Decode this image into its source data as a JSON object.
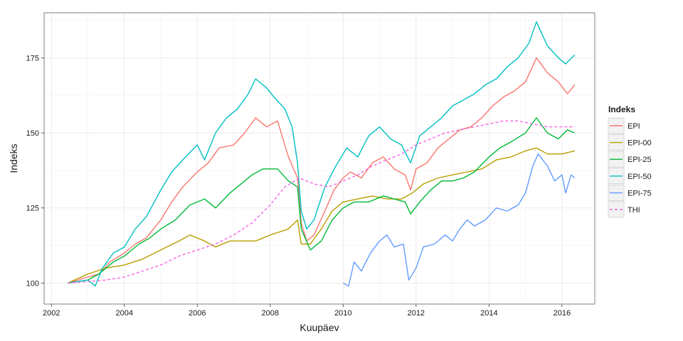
{
  "chart_data": {
    "type": "line",
    "xlabel": "Kuupäev",
    "ylabel": "Indeks",
    "xlim": [
      2001.8,
      2016.9
    ],
    "ylim": [
      93,
      190
    ],
    "x_ticks": [
      2002,
      2004,
      2006,
      2008,
      2010,
      2012,
      2014,
      2016
    ],
    "y_ticks": [
      100,
      125,
      150,
      175
    ],
    "grid": true,
    "legend": {
      "title": "Indeks",
      "position": "right"
    },
    "series": [
      {
        "name": "EPI",
        "color": "#f8766d",
        "dash": false,
        "points": [
          [
            2002.45,
            100
          ],
          [
            2003.0,
            102
          ],
          [
            2003.3,
            103
          ],
          [
            2003.6,
            107
          ],
          [
            2004.0,
            110
          ],
          [
            2004.3,
            113
          ],
          [
            2004.6,
            115
          ],
          [
            2005.0,
            121
          ],
          [
            2005.3,
            127
          ],
          [
            2005.6,
            132
          ],
          [
            2006.0,
            137
          ],
          [
            2006.3,
            140
          ],
          [
            2006.6,
            145
          ],
          [
            2007.0,
            146
          ],
          [
            2007.3,
            150
          ],
          [
            2007.6,
            155
          ],
          [
            2007.9,
            152
          ],
          [
            2008.2,
            154
          ],
          [
            2008.5,
            142
          ],
          [
            2008.75,
            135
          ],
          [
            2008.85,
            120
          ],
          [
            2009.0,
            114
          ],
          [
            2009.2,
            116
          ],
          [
            2009.5,
            124
          ],
          [
            2009.75,
            131
          ],
          [
            2010.0,
            135
          ],
          [
            2010.2,
            137
          ],
          [
            2010.5,
            135
          ],
          [
            2010.8,
            140
          ],
          [
            2011.1,
            142
          ],
          [
            2011.4,
            138
          ],
          [
            2011.7,
            136
          ],
          [
            2011.85,
            131
          ],
          [
            2012.0,
            138
          ],
          [
            2012.3,
            140
          ],
          [
            2012.6,
            145
          ],
          [
            2012.9,
            148
          ],
          [
            2013.2,
            151
          ],
          [
            2013.5,
            152
          ],
          [
            2013.8,
            155
          ],
          [
            2014.1,
            159
          ],
          [
            2014.4,
            162
          ],
          [
            2014.7,
            164
          ],
          [
            2015.0,
            167
          ],
          [
            2015.3,
            175
          ],
          [
            2015.6,
            170
          ],
          [
            2015.9,
            167
          ],
          [
            2016.15,
            163
          ],
          [
            2016.35,
            166
          ]
        ]
      },
      {
        "name": "EPI-00",
        "color": "#b79f00",
        "dash": false,
        "points": [
          [
            2002.45,
            100
          ],
          [
            2003.0,
            103
          ],
          [
            2003.5,
            105
          ],
          [
            2004.0,
            106
          ],
          [
            2004.5,
            108
          ],
          [
            2005.0,
            111
          ],
          [
            2005.5,
            114
          ],
          [
            2005.8,
            116
          ],
          [
            2006.2,
            114
          ],
          [
            2006.5,
            112
          ],
          [
            2006.9,
            114
          ],
          [
            2007.3,
            114
          ],
          [
            2007.6,
            114
          ],
          [
            2008.0,
            116
          ],
          [
            2008.5,
            118
          ],
          [
            2008.75,
            121
          ],
          [
            2008.85,
            113
          ],
          [
            2009.1,
            113
          ],
          [
            2009.4,
            118
          ],
          [
            2009.7,
            124
          ],
          [
            2010.0,
            127
          ],
          [
            2010.4,
            128
          ],
          [
            2010.8,
            129
          ],
          [
            2011.2,
            128
          ],
          [
            2011.6,
            128
          ],
          [
            2011.9,
            130
          ],
          [
            2012.2,
            133
          ],
          [
            2012.6,
            135
          ],
          [
            2013.0,
            136
          ],
          [
            2013.4,
            137
          ],
          [
            2013.8,
            138
          ],
          [
            2014.2,
            141
          ],
          [
            2014.6,
            142
          ],
          [
            2015.0,
            144
          ],
          [
            2015.3,
            145
          ],
          [
            2015.6,
            143
          ],
          [
            2016.0,
            143
          ],
          [
            2016.35,
            144
          ]
        ]
      },
      {
        "name": "EPI-25",
        "color": "#00ba38",
        "dash": false,
        "points": [
          [
            2002.45,
            100
          ],
          [
            2003.0,
            101
          ],
          [
            2003.3,
            103
          ],
          [
            2003.7,
            107
          ],
          [
            2004.0,
            109
          ],
          [
            2004.4,
            113
          ],
          [
            2004.7,
            115
          ],
          [
            2005.0,
            118
          ],
          [
            2005.4,
            121
          ],
          [
            2005.8,
            126
          ],
          [
            2006.2,
            128
          ],
          [
            2006.5,
            125
          ],
          [
            2006.9,
            130
          ],
          [
            2007.2,
            133
          ],
          [
            2007.5,
            136
          ],
          [
            2007.8,
            138
          ],
          [
            2008.2,
            138
          ],
          [
            2008.5,
            134
          ],
          [
            2008.75,
            132
          ],
          [
            2008.85,
            118
          ],
          [
            2009.1,
            111
          ],
          [
            2009.4,
            114
          ],
          [
            2009.7,
            121
          ],
          [
            2010.0,
            125
          ],
          [
            2010.3,
            127
          ],
          [
            2010.7,
            127
          ],
          [
            2011.1,
            129
          ],
          [
            2011.4,
            128
          ],
          [
            2011.7,
            127
          ],
          [
            2011.85,
            123
          ],
          [
            2012.1,
            127
          ],
          [
            2012.4,
            131
          ],
          [
            2012.7,
            134
          ],
          [
            2013.0,
            134
          ],
          [
            2013.3,
            135
          ],
          [
            2013.6,
            137
          ],
          [
            2014.0,
            142
          ],
          [
            2014.3,
            145
          ],
          [
            2014.6,
            147
          ],
          [
            2015.0,
            150
          ],
          [
            2015.3,
            155
          ],
          [
            2015.6,
            150
          ],
          [
            2015.9,
            148
          ],
          [
            2016.15,
            151
          ],
          [
            2016.35,
            150
          ]
        ]
      },
      {
        "name": "EPI-50",
        "color": "#00bfc4",
        "dash": false,
        "points": [
          [
            2002.45,
            100
          ],
          [
            2003.0,
            101
          ],
          [
            2003.2,
            99
          ],
          [
            2003.4,
            105
          ],
          [
            2003.7,
            110
          ],
          [
            2004.0,
            112
          ],
          [
            2004.3,
            118
          ],
          [
            2004.6,
            122
          ],
          [
            2005.0,
            131
          ],
          [
            2005.3,
            137
          ],
          [
            2005.6,
            141
          ],
          [
            2006.0,
            146
          ],
          [
            2006.2,
            141
          ],
          [
            2006.5,
            150
          ],
          [
            2006.8,
            155
          ],
          [
            2007.1,
            158
          ],
          [
            2007.4,
            163
          ],
          [
            2007.6,
            168
          ],
          [
            2007.9,
            165
          ],
          [
            2008.1,
            162
          ],
          [
            2008.4,
            158
          ],
          [
            2008.6,
            152
          ],
          [
            2008.75,
            140
          ],
          [
            2008.85,
            124
          ],
          [
            2009.0,
            118
          ],
          [
            2009.2,
            121
          ],
          [
            2009.5,
            132
          ],
          [
            2009.8,
            139
          ],
          [
            2010.1,
            145
          ],
          [
            2010.4,
            142
          ],
          [
            2010.7,
            149
          ],
          [
            2011.0,
            152
          ],
          [
            2011.3,
            148
          ],
          [
            2011.6,
            146
          ],
          [
            2011.85,
            140
          ],
          [
            2012.1,
            149
          ],
          [
            2012.4,
            152
          ],
          [
            2012.7,
            155
          ],
          [
            2013.0,
            159
          ],
          [
            2013.3,
            161
          ],
          [
            2013.6,
            163
          ],
          [
            2013.9,
            166
          ],
          [
            2014.2,
            168
          ],
          [
            2014.5,
            172
          ],
          [
            2014.8,
            175
          ],
          [
            2015.1,
            180
          ],
          [
            2015.3,
            187
          ],
          [
            2015.6,
            179
          ],
          [
            2015.9,
            175
          ],
          [
            2016.1,
            173
          ],
          [
            2016.35,
            176
          ]
        ]
      },
      {
        "name": "EPI-75",
        "color": "#619cff",
        "dash": false,
        "points": [
          [
            2010.0,
            100
          ],
          [
            2010.15,
            99
          ],
          [
            2010.3,
            107
          ],
          [
            2010.5,
            104
          ],
          [
            2010.75,
            110
          ],
          [
            2011.0,
            114
          ],
          [
            2011.2,
            116
          ],
          [
            2011.4,
            112
          ],
          [
            2011.65,
            113
          ],
          [
            2011.8,
            101
          ],
          [
            2012.0,
            105
          ],
          [
            2012.2,
            112
          ],
          [
            2012.5,
            113
          ],
          [
            2012.8,
            116
          ],
          [
            2013.0,
            114
          ],
          [
            2013.2,
            118
          ],
          [
            2013.4,
            121
          ],
          [
            2013.6,
            119
          ],
          [
            2013.9,
            121
          ],
          [
            2014.2,
            125
          ],
          [
            2014.5,
            124
          ],
          [
            2014.8,
            126
          ],
          [
            2015.0,
            130
          ],
          [
            2015.2,
            139
          ],
          [
            2015.35,
            143
          ],
          [
            2015.6,
            139
          ],
          [
            2015.8,
            134
          ],
          [
            2016.0,
            136
          ],
          [
            2016.1,
            130
          ],
          [
            2016.25,
            136
          ],
          [
            2016.35,
            135
          ]
        ]
      },
      {
        "name": "THI",
        "color": "#f564e3",
        "dash": true,
        "points": [
          [
            2002.45,
            100
          ],
          [
            2003.0,
            100.5
          ],
          [
            2003.5,
            101
          ],
          [
            2004.0,
            102
          ],
          [
            2004.5,
            104
          ],
          [
            2005.0,
            106
          ],
          [
            2005.5,
            109
          ],
          [
            2006.0,
            111
          ],
          [
            2006.5,
            113
          ],
          [
            2007.0,
            116
          ],
          [
            2007.5,
            120
          ],
          [
            2008.0,
            126
          ],
          [
            2008.4,
            132
          ],
          [
            2008.8,
            135
          ],
          [
            2009.2,
            133
          ],
          [
            2009.6,
            132
          ],
          [
            2010.0,
            134
          ],
          [
            2010.4,
            136
          ],
          [
            2010.8,
            139
          ],
          [
            2011.2,
            141
          ],
          [
            2011.6,
            143
          ],
          [
            2012.0,
            146
          ],
          [
            2012.4,
            148
          ],
          [
            2012.8,
            150
          ],
          [
            2013.2,
            151
          ],
          [
            2013.6,
            152
          ],
          [
            2014.0,
            153
          ],
          [
            2014.4,
            154
          ],
          [
            2014.8,
            154
          ],
          [
            2015.2,
            153
          ],
          [
            2015.6,
            152
          ],
          [
            2016.0,
            152
          ],
          [
            2016.35,
            152
          ]
        ]
      }
    ]
  }
}
